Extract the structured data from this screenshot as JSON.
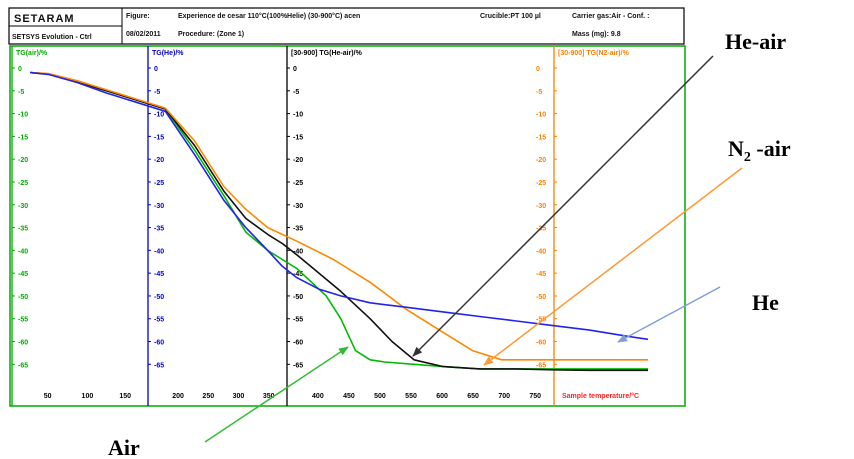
{
  "header": {
    "brand": "SETARAM",
    "software": "SETSYS Evolution - Ctrl",
    "figure_label": "Figure:",
    "experiment": "Experience de cesar 110°C(100%Helie) (30-900°C) acen",
    "date": "08/02/2011",
    "procedure": "Procedure: (Zone 1)",
    "crucible": "Crucible:PT 100 µl",
    "carrier": "Carrier gas:Air - Conf. :",
    "mass": "Mass (mg): 9.8"
  },
  "chart_data": {
    "type": "line",
    "title": "",
    "xlabel": "Sample temperature/°C",
    "ylim": [
      -68,
      0
    ],
    "panels": [
      {
        "ylabel": "TG(air)/%",
        "color": "#00aa00",
        "x_ticks": [
          "50",
          "100",
          "150"
        ]
      },
      {
        "ylabel": "TG(He)/%",
        "color": "#0000cc",
        "x_ticks": [
          "200",
          "250",
          "300",
          "350"
        ]
      },
      {
        "ylabel": "[30-900] TG(He-air)/%",
        "color": "#000000",
        "x_ticks": [
          "400",
          "450",
          "500",
          "550",
          "600",
          "650",
          "700",
          "750"
        ]
      },
      {
        "ylabel": "[30-900] TG(N2-air)/%",
        "color": "#ff7f00",
        "x_ticks": []
      }
    ],
    "y_ticks": [
      "0",
      "-5",
      "-10",
      "-15",
      "-20",
      "-25",
      "-30",
      "-35",
      "-40",
      "-45",
      "-50",
      "-55",
      "-60",
      "-65"
    ],
    "series": [
      {
        "name": "Air",
        "color": "#00bb00",
        "x": [
          35,
          60,
          100,
          140,
          180,
          220,
          260,
          300,
          330,
          360,
          380,
          400,
          420,
          440,
          460,
          480,
          500,
          520,
          560,
          600,
          650,
          700,
          750,
          800,
          850,
          880
        ],
        "y": [
          -1,
          -1.3,
          -3,
          -5,
          -7,
          -9,
          -18,
          -28,
          -36,
          -40,
          -42,
          -44,
          -47,
          -50,
          -55,
          -62,
          -64,
          -64.5,
          -65,
          -65.5,
          -66,
          -66,
          -66,
          -66,
          -66,
          -66
        ]
      },
      {
        "name": "He-air",
        "color": "#111111",
        "x": [
          35,
          60,
          100,
          140,
          180,
          220,
          260,
          300,
          330,
          360,
          380,
          400,
          430,
          460,
          500,
          530,
          560,
          600,
          650,
          700,
          750,
          800,
          850,
          880
        ],
        "y": [
          -1,
          -1.3,
          -3,
          -5,
          -7,
          -9,
          -17,
          -27,
          -33,
          -36.5,
          -38.5,
          -41,
          -45,
          -49,
          -55,
          -60,
          -64,
          -65.5,
          -66,
          -66,
          -66.2,
          -66.3,
          -66.3,
          -66.3
        ]
      },
      {
        "name": "N2 -air",
        "color": "#ff8800",
        "x": [
          35,
          60,
          100,
          140,
          180,
          220,
          260,
          300,
          330,
          360,
          400,
          450,
          500,
          550,
          600,
          640,
          680,
          720,
          750,
          800,
          850,
          880
        ],
        "y": [
          -1,
          -1.2,
          -2.8,
          -4.8,
          -6.8,
          -8.8,
          -16,
          -26,
          -31,
          -35,
          -38,
          -42,
          -47,
          -53,
          -58,
          -62,
          -64,
          -64,
          -64,
          -64,
          -64,
          -64
        ]
      },
      {
        "name": "He",
        "color": "#2222ee",
        "x": [
          35,
          60,
          100,
          140,
          180,
          220,
          260,
          300,
          330,
          360,
          380,
          400,
          430,
          460,
          500,
          550,
          600,
          650,
          700,
          750,
          800,
          850,
          880
        ],
        "y": [
          -1,
          -1.4,
          -3.2,
          -5.5,
          -7.5,
          -9.5,
          -19,
          -29,
          -35,
          -40,
          -43.5,
          -46,
          -48.5,
          -50,
          -51.5,
          -52.5,
          -53.5,
          -54.5,
          -55.5,
          -56.5,
          -57.5,
          -58.8,
          -59.5
        ]
      }
    ]
  },
  "annotations": [
    {
      "text": "He-air",
      "color": "#111111"
    },
    {
      "text": "N",
      "sub": "2",
      "rest": " -air",
      "color": "#ff8c1a"
    },
    {
      "text": "He",
      "color": "#1f5fa8"
    },
    {
      "text": "Air",
      "color": "#1a9a1a"
    }
  ]
}
